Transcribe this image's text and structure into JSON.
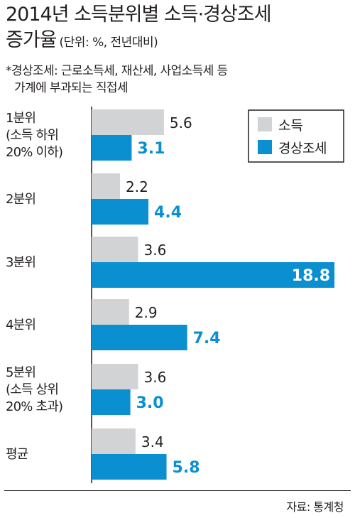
{
  "header": {
    "title": "2014년 소득분위별 소득·경상조세",
    "title_line2": "증가율",
    "unit": "(단위: %, 전년대비)",
    "note_line1": "*경상조세: 근로소득세, 재산세, 사업소득세 등",
    "note_line2": "가계에 부과되는 직접세"
  },
  "source": "자료: 통계청",
  "colors": {
    "income": "#d2d3d5",
    "tax": "#0a8fd0",
    "tax_label": "#0a8fd0",
    "text": "#231f20"
  },
  "chart_data": {
    "type": "bar",
    "orientation": "horizontal",
    "categories": [
      [
        "1분위",
        "(소득 하위",
        "20% 이하)"
      ],
      [
        "2분위"
      ],
      [
        "3분위"
      ],
      [
        "4분위"
      ],
      [
        "5분위",
        "(소득 상위",
        "20% 초과)"
      ],
      [
        "평균"
      ]
    ],
    "series": [
      {
        "name": "소득",
        "values": [
          5.6,
          2.2,
          3.6,
          2.9,
          3.6,
          3.4
        ]
      },
      {
        "name": "경상조세",
        "values": [
          3.1,
          4.4,
          18.8,
          7.4,
          3.0,
          5.8
        ]
      }
    ],
    "value_labels": [
      [
        "5.6",
        "2.2",
        "3.6",
        "2.9",
        "3.6",
        "3.4"
      ],
      [
        "3.1",
        "4.4",
        "18.8",
        "7.4",
        "3.0",
        "5.8"
      ]
    ],
    "xlim": [
      0,
      19.4
    ],
    "grid": false,
    "legend": "top-right"
  }
}
